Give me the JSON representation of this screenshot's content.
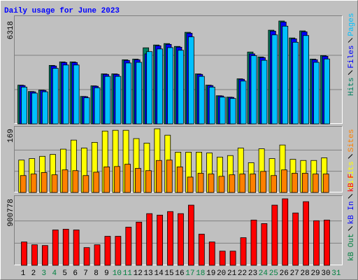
{
  "chart_data": [
    {
      "type": "bar",
      "title": "Daily usage for June 2023",
      "ylim": [
        0,
        6318
      ],
      "yticks": [
        6318
      ],
      "series": [
        {
          "name": "Hits",
          "color": "#008060",
          "values": [
            2380,
            1990,
            2077,
            3592,
            3808,
            3808,
            1688,
            2337,
            3072,
            3072,
            3938,
            3981,
            4673,
            4846,
            4933,
            4760,
            5625,
            3072,
            2380,
            1731,
            1644,
            2769,
            4414,
            4111,
            5755,
            6318,
            5279,
            5712,
            3981,
            4197,
            null
          ]
        },
        {
          "name": "Files",
          "color": "#0000ff",
          "values": [
            2356,
            1970,
            2056,
            3556,
            3770,
            3770,
            1671,
            2314,
            3041,
            3041,
            3899,
            3941,
            4300,
            4798,
            4884,
            4712,
            5569,
            3041,
            2356,
            1714,
            1628,
            2741,
            4300,
            4070,
            5697,
            6255,
            5226,
            5655,
            3941,
            4155,
            null
          ]
        },
        {
          "name": "Pages",
          "color": "#00c0ff",
          "values": [
            2261,
            1891,
            1973,
            3412,
            3618,
            3618,
            1604,
            2220,
            2918,
            2918,
            3741,
            3782,
            4439,
            4604,
            4686,
            4522,
            5344,
            2918,
            2261,
            1644,
            1562,
            2631,
            4193,
            3905,
            5467,
            6002,
            5015,
            5426,
            3782,
            3987,
            null
          ]
        }
      ]
    },
    {
      "type": "bar",
      "ylim": [
        0,
        169
      ],
      "yticks": [
        169
      ],
      "series": [
        {
          "name": "Visits",
          "color": "#ffff00",
          "values": [
            86,
            90,
            96,
            101,
            115,
            139,
            118,
            133,
            163,
            165,
            165,
            143,
            131,
            169,
            152,
            107,
            107,
            107,
            105,
            94,
            98,
            118,
            79,
            116,
            90,
            126,
            88,
            85,
            85,
            92,
            null
          ]
        },
        {
          "name": "Sites",
          "color": "#ff8000",
          "values": [
            45,
            49,
            53,
            47,
            60,
            58,
            45,
            54,
            68,
            69,
            75,
            64,
            58,
            85,
            86,
            68,
            41,
            51,
            49,
            43,
            47,
            49,
            49,
            56,
            45,
            60,
            51,
            51,
            49,
            49,
            null
          ]
        }
      ]
    },
    {
      "type": "bar",
      "ylim": [
        0,
        900778
      ],
      "yticks": [
        900778
      ],
      "categories": [
        1,
        2,
        3,
        4,
        5,
        6,
        7,
        8,
        9,
        10,
        11,
        12,
        13,
        14,
        15,
        16,
        17,
        18,
        19,
        20,
        21,
        22,
        23,
        24,
        25,
        26,
        27,
        28,
        29,
        30,
        31
      ],
      "category_colors": [
        "#000000",
        "#000000",
        "#008040",
        "#008040",
        "#000000",
        "#000000",
        "#000000",
        "#000000",
        "#000000",
        "#008040",
        "#008040",
        "#000000",
        "#000000",
        "#000000",
        "#000000",
        "#000000",
        "#008040",
        "#008040",
        "#000000",
        "#000000",
        "#000000",
        "#000000",
        "#000000",
        "#008040",
        "#008040",
        "#000000",
        "#000000",
        "#000000",
        "#000000",
        "#000000",
        "#008040"
      ],
      "series": [
        {
          "name": "kB Out",
          "color": "#008040",
          "values": [
            0,
            0,
            0,
            0,
            0,
            0,
            0,
            0,
            0,
            0,
            0,
            0,
            0,
            0,
            0,
            0,
            0,
            0,
            0,
            0,
            0,
            0,
            0,
            0,
            0,
            0,
            0,
            0,
            0,
            0,
            null
          ]
        },
        {
          "name": "kB In",
          "color": "#0000ff",
          "values": [
            0,
            0,
            0,
            0,
            0,
            0,
            0,
            0,
            0,
            0,
            0,
            0,
            0,
            0,
            0,
            0,
            0,
            0,
            0,
            0,
            0,
            0,
            0,
            0,
            0,
            0,
            0,
            0,
            0,
            0,
            null
          ]
        },
        {
          "name": "kB F",
          "color": "#ff0000",
          "values": [
            316000,
            278000,
            268000,
            479000,
            489000,
            479000,
            240000,
            278000,
            393000,
            393000,
            517000,
            585000,
            700000,
            680000,
            728000,
            700000,
            815000,
            422000,
            316000,
            192000,
            192000,
            374000,
            613000,
            565000,
            815000,
            900778,
            709000,
            862000,
            604000,
            613000,
            null
          ]
        }
      ]
    }
  ]
}
